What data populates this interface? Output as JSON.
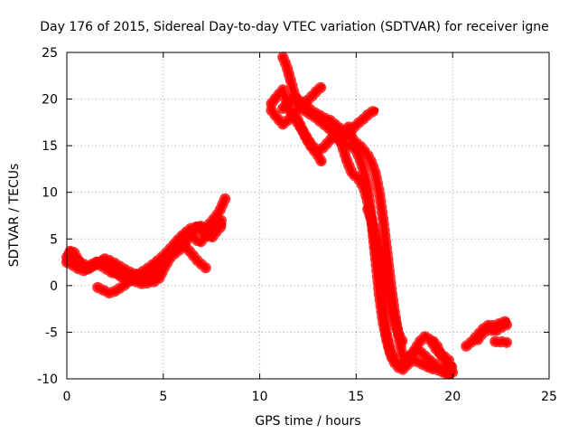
{
  "chart_data": {
    "type": "line",
    "title": "Day 176 of 2015, Sidereal Day-to-day VTEC variation (SDTVAR) for receiver igne",
    "xlabel": "GPS time / hours",
    "ylabel": "SDTVAR / TECUs",
    "xlim": [
      0,
      25
    ],
    "ylim": [
      -10,
      25
    ],
    "xticks": [
      0,
      5,
      10,
      15,
      20,
      25
    ],
    "yticks": [
      -10,
      -5,
      0,
      5,
      10,
      15,
      20,
      25
    ],
    "grid": true,
    "legend": "none",
    "series_color": "#ff0000",
    "series": [
      {
        "x": [
          0.0,
          0.2,
          0.4,
          0.6,
          0.8,
          1.0,
          1.2,
          1.5,
          1.8,
          2.1,
          2.4,
          2.7,
          3.0,
          3.3,
          3.6,
          3.9,
          4.2,
          4.5,
          4.8,
          5.1,
          5.4,
          5.7,
          6.0,
          6.3,
          6.6,
          6.9,
          7.2,
          7.5,
          7.8,
          8.0
        ],
        "y": [
          3.0,
          3.8,
          3.5,
          2.6,
          2.0,
          1.7,
          1.9,
          2.3,
          2.7,
          2.3,
          1.6,
          1.1,
          0.7,
          0.9,
          0.4,
          0.2,
          0.3,
          0.9,
          1.5,
          2.7,
          3.6,
          4.3,
          5.1,
          5.6,
          5.1,
          4.6,
          5.3,
          5.9,
          6.6,
          7.0
        ]
      },
      {
        "x": [
          0.1,
          0.4,
          0.8,
          1.2,
          1.6,
          2.0,
          2.4,
          2.8,
          3.2,
          3.6,
          4.0,
          4.4,
          4.8,
          5.2,
          5.6,
          6.0,
          6.4,
          6.8,
          7.2
        ],
        "y": [
          3.3,
          2.9,
          2.4,
          1.9,
          2.4,
          2.9,
          2.5,
          2.0,
          1.5,
          1.2,
          1.0,
          1.3,
          2.0,
          3.1,
          3.9,
          4.5,
          3.6,
          2.6,
          1.9
        ]
      },
      {
        "x": [
          1.6,
          1.9,
          2.2,
          2.5,
          2.8,
          3.1,
          3.4,
          3.7,
          4.0,
          4.3,
          4.6,
          4.9,
          5.2,
          5.5,
          5.8,
          6.1,
          6.4,
          6.7,
          7.0,
          7.3,
          7.6,
          7.9,
          8.2
        ],
        "y": [
          -0.2,
          -0.5,
          -0.8,
          -0.6,
          -0.2,
          0.2,
          0.8,
          1.2,
          1.6,
          2.0,
          2.5,
          3.0,
          3.6,
          4.3,
          5.0,
          5.6,
          6.1,
          6.3,
          5.8,
          6.4,
          7.1,
          7.9,
          9.3
        ]
      },
      {
        "x": [
          0.0,
          0.3,
          0.6,
          0.9,
          1.2,
          1.5,
          1.8,
          2.1,
          2.4,
          2.7,
          3.0,
          3.3,
          3.6,
          3.9,
          4.2,
          4.5,
          4.8,
          5.1,
          5.4,
          5.7,
          6.0,
          6.3,
          6.6,
          6.9,
          7.2,
          7.5,
          7.8,
          8.1
        ],
        "y": [
          2.5,
          2.2,
          1.8,
          1.6,
          2.1,
          2.6,
          2.1,
          1.7,
          1.3,
          1.3,
          1.0,
          0.6,
          0.7,
          1.0,
          0.6,
          0.4,
          0.8,
          2.1,
          3.1,
          3.6,
          4.1,
          5.2,
          6.0,
          6.5,
          5.6,
          5.1,
          5.9,
          6.6
        ]
      },
      {
        "x": [
          11.2,
          11.4,
          11.6,
          11.8,
          12.0,
          12.3,
          12.6,
          12.9,
          13.2,
          13.5,
          13.8,
          14.1,
          14.4,
          14.7,
          15.0,
          15.3,
          15.6,
          15.8,
          16.0,
          16.2,
          16.4,
          16.6,
          16.8,
          17.0,
          17.2,
          17.4,
          17.6,
          17.8,
          18.0,
          18.3,
          18.6,
          18.9,
          19.2,
          19.5,
          19.8,
          20.0
        ],
        "y": [
          24.5,
          23.5,
          22.0,
          20.5,
          19.5,
          18.8,
          18.4,
          18.0,
          17.5,
          17.0,
          16.4,
          15.6,
          15.1,
          15.0,
          14.5,
          13.0,
          10.5,
          7.0,
          3.0,
          -1.0,
          -4.0,
          -6.0,
          -7.5,
          -8.3,
          -8.8,
          -9.0,
          -8.6,
          -8.2,
          -8.0,
          -8.3,
          -8.6,
          -8.9,
          -9.0,
          -9.3,
          -9.5,
          -8.5
        ]
      },
      {
        "x": [
          10.6,
          10.9,
          11.2,
          11.5,
          11.8,
          12.1,
          12.4,
          12.7,
          13.0,
          13.3,
          13.6,
          13.9,
          14.2,
          14.5,
          14.8,
          15.1,
          15.4,
          15.6,
          15.8,
          16.0,
          16.2,
          16.4,
          16.6,
          16.8,
          17.0,
          17.2,
          17.5,
          17.8,
          18.1,
          18.4,
          18.7,
          19.0,
          19.3,
          19.6,
          19.9
        ],
        "y": [
          19.5,
          20.3,
          21.0,
          19.0,
          18.0,
          17.0,
          16.0,
          15.0,
          14.5,
          14.8,
          15.5,
          16.2,
          15.5,
          13.5,
          12.0,
          11.5,
          10.5,
          9.0,
          7.0,
          4.5,
          1.5,
          -2.5,
          -5.5,
          -7.2,
          -8.0,
          -8.4,
          -8.0,
          -7.5,
          -7.0,
          -7.2,
          -7.8,
          -8.3,
          -8.8,
          -9.2,
          -9.6
        ]
      },
      {
        "x": [
          10.6,
          10.9,
          11.2,
          11.5,
          11.8,
          12.1,
          12.4,
          12.7,
          13.0,
          13.2
        ],
        "y": [
          18.8,
          18.0,
          17.3,
          17.8,
          18.5,
          17.2,
          15.8,
          14.8,
          14.0,
          13.3
        ]
      },
      {
        "x": [
          11.2,
          11.5,
          11.8,
          12.1,
          12.4,
          12.7,
          13.0,
          13.3,
          13.6,
          13.9,
          14.2,
          14.5,
          14.8,
          15.1,
          15.4,
          15.7,
          16.0
        ],
        "y": [
          19.0,
          19.6,
          20.2,
          19.8,
          19.3,
          18.7,
          18.4,
          18.0,
          17.8,
          17.3,
          16.8,
          16.0,
          16.8,
          17.4,
          17.9,
          18.5,
          18.8
        ]
      },
      {
        "x": [
          12.0,
          12.2,
          12.4,
          12.6,
          12.8,
          13.0,
          13.2
        ],
        "y": [
          19.0,
          19.4,
          19.7,
          20.1,
          20.5,
          21.0,
          21.3
        ]
      },
      {
        "x": [
          14.6,
          14.8,
          15.0,
          15.2,
          15.4,
          15.6,
          15.8,
          16.0,
          16.2,
          16.4,
          16.6,
          16.8,
          17.0,
          17.2,
          17.4
        ],
        "y": [
          17.0,
          15.8,
          15.3,
          15.0,
          14.5,
          14.0,
          13.2,
          12.0,
          10.0,
          7.0,
          3.5,
          0.0,
          -3.0,
          -5.5,
          -7.5
        ]
      },
      {
        "x": [
          15.6,
          15.8,
          16.0,
          16.2,
          16.4,
          16.6,
          16.8,
          17.0,
          17.2,
          17.4
        ],
        "y": [
          8.2,
          7.0,
          5.5,
          3.8,
          2.0,
          0.0,
          -2.0,
          -3.8,
          -5.2,
          -6.0
        ]
      },
      {
        "x": [
          17.4,
          17.7,
          18.0,
          18.3,
          18.6,
          18.9,
          19.2,
          19.5,
          19.8
        ],
        "y": [
          -8.5,
          -8.0,
          -7.0,
          -6.0,
          -5.4,
          -6.0,
          -7.0,
          -7.5,
          -8.0
        ]
      },
      {
        "x": [
          19.0,
          19.2,
          19.4,
          19.6,
          19.8,
          20.0
        ],
        "y": [
          -6.0,
          -6.5,
          -7.5,
          -8.0,
          -8.8,
          -9.3
        ]
      },
      {
        "x": [
          20.7,
          21.0,
          21.3,
          21.6,
          21.9,
          22.2,
          22.5,
          22.8
        ],
        "y": [
          -6.5,
          -6.0,
          -5.3,
          -4.6,
          -4.2,
          -4.3,
          -4.0,
          -3.8
        ]
      },
      {
        "x": [
          21.3,
          21.6,
          21.9,
          22.2,
          22.5,
          22.8
        ],
        "y": [
          -5.8,
          -5.0,
          -4.7,
          -4.9,
          -4.5,
          -4.2
        ]
      },
      {
        "x": [
          22.2,
          22.4,
          22.6,
          22.8
        ],
        "y": [
          -6.0,
          -6.1,
          -6.0,
          -6.1
        ]
      }
    ]
  }
}
